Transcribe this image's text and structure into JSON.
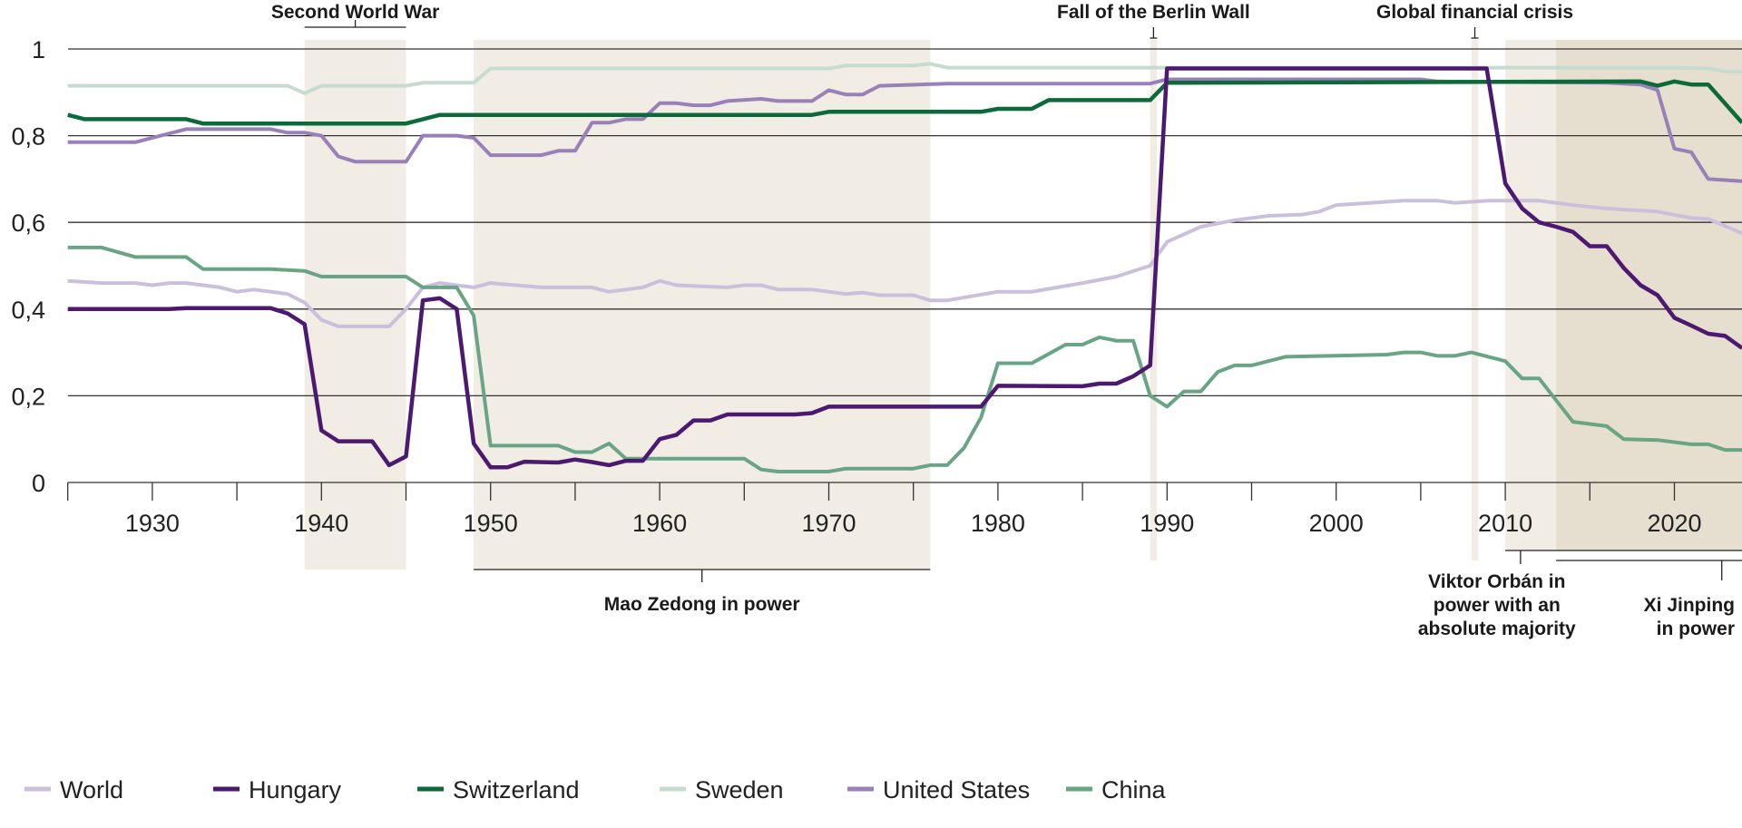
{
  "chart_data": {
    "type": "line",
    "title": "",
    "xlabel": "",
    "ylabel": "",
    "xlim": [
      1925,
      2024
    ],
    "ylim": [
      0,
      1
    ],
    "grid": true,
    "legend_position": "bottom",
    "y_ticks": [
      {
        "v": 0,
        "label": "0"
      },
      {
        "v": 0.2,
        "label": "0,2"
      },
      {
        "v": 0.4,
        "label": "0,4"
      },
      {
        "v": 0.6,
        "label": "0,6"
      },
      {
        "v": 0.8,
        "label": "0,8"
      },
      {
        "v": 1,
        "label": "1"
      }
    ],
    "x_ticks_minor": [
      1925,
      1930,
      1935,
      1940,
      1945,
      1950,
      1955,
      1960,
      1965,
      1970,
      1975,
      1980,
      1985,
      1990,
      1995,
      2000,
      2005,
      2010,
      2015,
      2020
    ],
    "x_tick_labels": [
      {
        "v": 1930,
        "label": "1930"
      },
      {
        "v": 1940,
        "label": "1940"
      },
      {
        "v": 1950,
        "label": "1950"
      },
      {
        "v": 1960,
        "label": "1960"
      },
      {
        "v": 1970,
        "label": "1970"
      },
      {
        "v": 1980,
        "label": "1980"
      },
      {
        "v": 1990,
        "label": "1990"
      },
      {
        "v": 2000,
        "label": "2000"
      },
      {
        "v": 2010,
        "label": "2010"
      },
      {
        "v": 2020,
        "label": "2020"
      }
    ],
    "periods": [
      {
        "name": "Second World War",
        "from": 1939,
        "to": 1945,
        "color": "#f1ede4"
      },
      {
        "name": "Mao Zedong in power",
        "from": 1949,
        "to": 1976,
        "color": "#f1ede4"
      },
      {
        "name": "Fall of the Berlin Wall",
        "from": 1989,
        "to": 1989.4,
        "color": "#f1ede4"
      },
      {
        "name": "Global financial crisis",
        "from": 2008,
        "to": 2008.4,
        "color": "#f1ede4"
      },
      {
        "name": "Viktor Orbán in power with an absolute majority",
        "from": 2010,
        "to": 2024,
        "color": "#f1ede4"
      },
      {
        "name": "Xi Jinping in power",
        "from": 2013,
        "to": 2024,
        "color": "#e6dfd0"
      }
    ],
    "annotations": {
      "ww2": "Second World War",
      "berlin": "Fall of the Berlin Wall",
      "gfc": "Global financial crisis",
      "mao": "Mao Zedong in power",
      "orban": [
        "Viktor Orbán in",
        "power with an",
        "absolute majority"
      ],
      "xi": [
        "Xi Jinping",
        "in power"
      ]
    },
    "series": [
      {
        "name": "World",
        "color": "#cbbfdd",
        "points": [
          [
            1925,
            0.465
          ],
          [
            1927,
            0.46
          ],
          [
            1929,
            0.46
          ],
          [
            1930,
            0.455
          ],
          [
            1931,
            0.46
          ],
          [
            1932,
            0.46
          ],
          [
            1934,
            0.45
          ],
          [
            1935,
            0.44
          ],
          [
            1936,
            0.445
          ],
          [
            1937,
            0.44
          ],
          [
            1938,
            0.435
          ],
          [
            1939,
            0.415
          ],
          [
            1940,
            0.375
          ],
          [
            1941,
            0.36
          ],
          [
            1944,
            0.36
          ],
          [
            1945,
            0.4
          ],
          [
            1946,
            0.45
          ],
          [
            1947,
            0.46
          ],
          [
            1949,
            0.45
          ],
          [
            1950,
            0.46
          ],
          [
            1953,
            0.45
          ],
          [
            1956,
            0.45
          ],
          [
            1957,
            0.44
          ],
          [
            1959,
            0.45
          ],
          [
            1960,
            0.465
          ],
          [
            1961,
            0.455
          ],
          [
            1964,
            0.45
          ],
          [
            1965,
            0.455
          ],
          [
            1966,
            0.455
          ],
          [
            1967,
            0.445
          ],
          [
            1969,
            0.445
          ],
          [
            1970,
            0.44
          ],
          [
            1971,
            0.435
          ],
          [
            1972,
            0.438
          ],
          [
            1973,
            0.432
          ],
          [
            1975,
            0.432
          ],
          [
            1976,
            0.42
          ],
          [
            1977,
            0.42
          ],
          [
            1980,
            0.44
          ],
          [
            1982,
            0.44
          ],
          [
            1985,
            0.46
          ],
          [
            1987,
            0.475
          ],
          [
            1989,
            0.5
          ],
          [
            1990,
            0.555
          ],
          [
            1992,
            0.59
          ],
          [
            1994,
            0.605
          ],
          [
            1996,
            0.615
          ],
          [
            1998,
            0.618
          ],
          [
            1999,
            0.625
          ],
          [
            2000,
            0.64
          ],
          [
            2002,
            0.645
          ],
          [
            2004,
            0.65
          ],
          [
            2006,
            0.65
          ],
          [
            2007,
            0.645
          ],
          [
            2009,
            0.65
          ],
          [
            2012,
            0.65
          ],
          [
            2014,
            0.64
          ],
          [
            2016,
            0.632
          ],
          [
            2019,
            0.625
          ],
          [
            2021,
            0.61
          ],
          [
            2022,
            0.608
          ],
          [
            2024,
            0.575
          ]
        ]
      },
      {
        "name": "Hungary",
        "color": "#4b1a70",
        "points": [
          [
            1925,
            0.4
          ],
          [
            1931,
            0.4
          ],
          [
            1932,
            0.402
          ],
          [
            1937,
            0.402
          ],
          [
            1938,
            0.39
          ],
          [
            1939,
            0.365
          ],
          [
            1940,
            0.12
          ],
          [
            1941,
            0.095
          ],
          [
            1943,
            0.095
          ],
          [
            1944,
            0.04
          ],
          [
            1945,
            0.06
          ],
          [
            1946,
            0.42
          ],
          [
            1947,
            0.425
          ],
          [
            1948,
            0.4
          ],
          [
            1949,
            0.09
          ],
          [
            1950,
            0.035
          ],
          [
            1951,
            0.035
          ],
          [
            1952,
            0.048
          ],
          [
            1954,
            0.046
          ],
          [
            1955,
            0.053
          ],
          [
            1956,
            0.047
          ],
          [
            1957,
            0.04
          ],
          [
            1958,
            0.05
          ],
          [
            1959,
            0.05
          ],
          [
            1960,
            0.1
          ],
          [
            1961,
            0.11
          ],
          [
            1962,
            0.143
          ],
          [
            1963,
            0.143
          ],
          [
            1964,
            0.157
          ],
          [
            1968,
            0.157
          ],
          [
            1969,
            0.16
          ],
          [
            1970,
            0.175
          ],
          [
            1979,
            0.175
          ],
          [
            1980,
            0.223
          ],
          [
            1985,
            0.222
          ],
          [
            1986,
            0.228
          ],
          [
            1987,
            0.228
          ],
          [
            1988,
            0.245
          ],
          [
            1989,
            0.27
          ],
          [
            1990,
            0.955
          ],
          [
            2008.9,
            0.955
          ],
          [
            2010,
            0.69
          ],
          [
            2011,
            0.632
          ],
          [
            2012,
            0.6
          ],
          [
            2013,
            0.59
          ],
          [
            2014,
            0.578
          ],
          [
            2015,
            0.545
          ],
          [
            2016,
            0.545
          ],
          [
            2017,
            0.495
          ],
          [
            2018,
            0.455
          ],
          [
            2019,
            0.432
          ],
          [
            2020,
            0.38
          ],
          [
            2021,
            0.362
          ],
          [
            2022,
            0.343
          ],
          [
            2023,
            0.338
          ],
          [
            2024,
            0.31
          ]
        ]
      },
      {
        "name": "Switzerland",
        "color": "#0c6a3a",
        "points": [
          [
            1925,
            0.848
          ],
          [
            1926,
            0.838
          ],
          [
            1932,
            0.838
          ],
          [
            1933,
            0.828
          ],
          [
            1945,
            0.828
          ],
          [
            1947,
            0.848
          ],
          [
            1969,
            0.848
          ],
          [
            1970,
            0.855
          ],
          [
            1979,
            0.855
          ],
          [
            1980,
            0.862
          ],
          [
            1982,
            0.862
          ],
          [
            1983,
            0.882
          ],
          [
            1989,
            0.882
          ],
          [
            1990,
            0.922
          ],
          [
            2018,
            0.925
          ],
          [
            2019,
            0.915
          ],
          [
            2020,
            0.925
          ],
          [
            2021,
            0.918
          ],
          [
            2022,
            0.918
          ],
          [
            2024,
            0.83
          ]
        ]
      },
      {
        "name": "Sweden",
        "color": "#c6dccf",
        "points": [
          [
            1925,
            0.915
          ],
          [
            1938,
            0.915
          ],
          [
            1939,
            0.898
          ],
          [
            1940,
            0.915
          ],
          [
            1945,
            0.915
          ],
          [
            1946,
            0.922
          ],
          [
            1948,
            0.922
          ],
          [
            1949,
            0.922
          ],
          [
            1950,
            0.955
          ],
          [
            1970,
            0.955
          ],
          [
            1971,
            0.962
          ],
          [
            1975,
            0.962
          ],
          [
            1976,
            0.966
          ],
          [
            1977,
            0.957
          ],
          [
            2020,
            0.957
          ],
          [
            2022,
            0.955
          ],
          [
            2023,
            0.948
          ],
          [
            2024,
            0.948
          ]
        ]
      },
      {
        "name": "United States",
        "color": "#9a80b9",
        "points": [
          [
            1925,
            0.785
          ],
          [
            1929,
            0.785
          ],
          [
            1931,
            0.805
          ],
          [
            1932,
            0.815
          ],
          [
            1937,
            0.815
          ],
          [
            1938,
            0.807
          ],
          [
            1939,
            0.807
          ],
          [
            1940,
            0.8
          ],
          [
            1941,
            0.752
          ],
          [
            1942,
            0.74
          ],
          [
            1945,
            0.74
          ],
          [
            1946,
            0.8
          ],
          [
            1948,
            0.8
          ],
          [
            1949,
            0.795
          ],
          [
            1950,
            0.755
          ],
          [
            1953,
            0.755
          ],
          [
            1954,
            0.765
          ],
          [
            1955,
            0.765
          ],
          [
            1956,
            0.83
          ],
          [
            1957,
            0.83
          ],
          [
            1958,
            0.838
          ],
          [
            1959,
            0.838
          ],
          [
            1960,
            0.875
          ],
          [
            1961,
            0.875
          ],
          [
            1962,
            0.87
          ],
          [
            1963,
            0.87
          ],
          [
            1964,
            0.88
          ],
          [
            1966,
            0.885
          ],
          [
            1967,
            0.88
          ],
          [
            1969,
            0.88
          ],
          [
            1970,
            0.905
          ],
          [
            1971,
            0.895
          ],
          [
            1972,
            0.895
          ],
          [
            1973,
            0.915
          ],
          [
            1977,
            0.92
          ],
          [
            1989,
            0.92
          ],
          [
            1990,
            0.93
          ],
          [
            2005,
            0.93
          ],
          [
            2006,
            0.925
          ],
          [
            2016,
            0.922
          ],
          [
            2018,
            0.918
          ],
          [
            2019,
            0.905
          ],
          [
            2020,
            0.77
          ],
          [
            2021,
            0.762
          ],
          [
            2022,
            0.7
          ],
          [
            2024,
            0.695
          ]
        ]
      },
      {
        "name": "China",
        "color": "#69a484",
        "points": [
          [
            1925,
            0.542
          ],
          [
            1927,
            0.542
          ],
          [
            1929,
            0.52
          ],
          [
            1932,
            0.52
          ],
          [
            1933,
            0.492
          ],
          [
            1937,
            0.492
          ],
          [
            1939,
            0.488
          ],
          [
            1940,
            0.475
          ],
          [
            1945,
            0.475
          ],
          [
            1946,
            0.45
          ],
          [
            1948,
            0.45
          ],
          [
            1949,
            0.385
          ],
          [
            1950,
            0.085
          ],
          [
            1954,
            0.085
          ],
          [
            1955,
            0.07
          ],
          [
            1956,
            0.07
          ],
          [
            1957,
            0.09
          ],
          [
            1958,
            0.055
          ],
          [
            1964,
            0.055
          ],
          [
            1965,
            0.055
          ],
          [
            1966,
            0.03
          ],
          [
            1967,
            0.025
          ],
          [
            1970,
            0.025
          ],
          [
            1971,
            0.032
          ],
          [
            1975,
            0.032
          ],
          [
            1976,
            0.04
          ],
          [
            1977,
            0.04
          ],
          [
            1978,
            0.08
          ],
          [
            1979,
            0.15
          ],
          [
            1980,
            0.275
          ],
          [
            1982,
            0.275
          ],
          [
            1984,
            0.318
          ],
          [
            1985,
            0.318
          ],
          [
            1986,
            0.335
          ],
          [
            1987,
            0.327
          ],
          [
            1988,
            0.327
          ],
          [
            1989,
            0.2
          ],
          [
            1990,
            0.175
          ],
          [
            1991,
            0.21
          ],
          [
            1992,
            0.21
          ],
          [
            1993,
            0.255
          ],
          [
            1994,
            0.27
          ],
          [
            1995,
            0.27
          ],
          [
            1997,
            0.29
          ],
          [
            2003,
            0.295
          ],
          [
            2004,
            0.3
          ],
          [
            2005,
            0.3
          ],
          [
            2006,
            0.292
          ],
          [
            2007,
            0.292
          ],
          [
            2008,
            0.3
          ],
          [
            2009,
            0.29
          ],
          [
            2010,
            0.28
          ],
          [
            2011,
            0.24
          ],
          [
            2012,
            0.24
          ],
          [
            2013,
            0.19
          ],
          [
            2014,
            0.14
          ],
          [
            2016,
            0.13
          ],
          [
            2017,
            0.1
          ],
          [
            2019,
            0.098
          ],
          [
            2021,
            0.088
          ],
          [
            2022,
            0.088
          ],
          [
            2023,
            0.075
          ],
          [
            2024,
            0.075
          ]
        ]
      }
    ],
    "legend_order": [
      "World",
      "Hungary",
      "Switzerland",
      "Sweden",
      "United States",
      "China"
    ]
  }
}
